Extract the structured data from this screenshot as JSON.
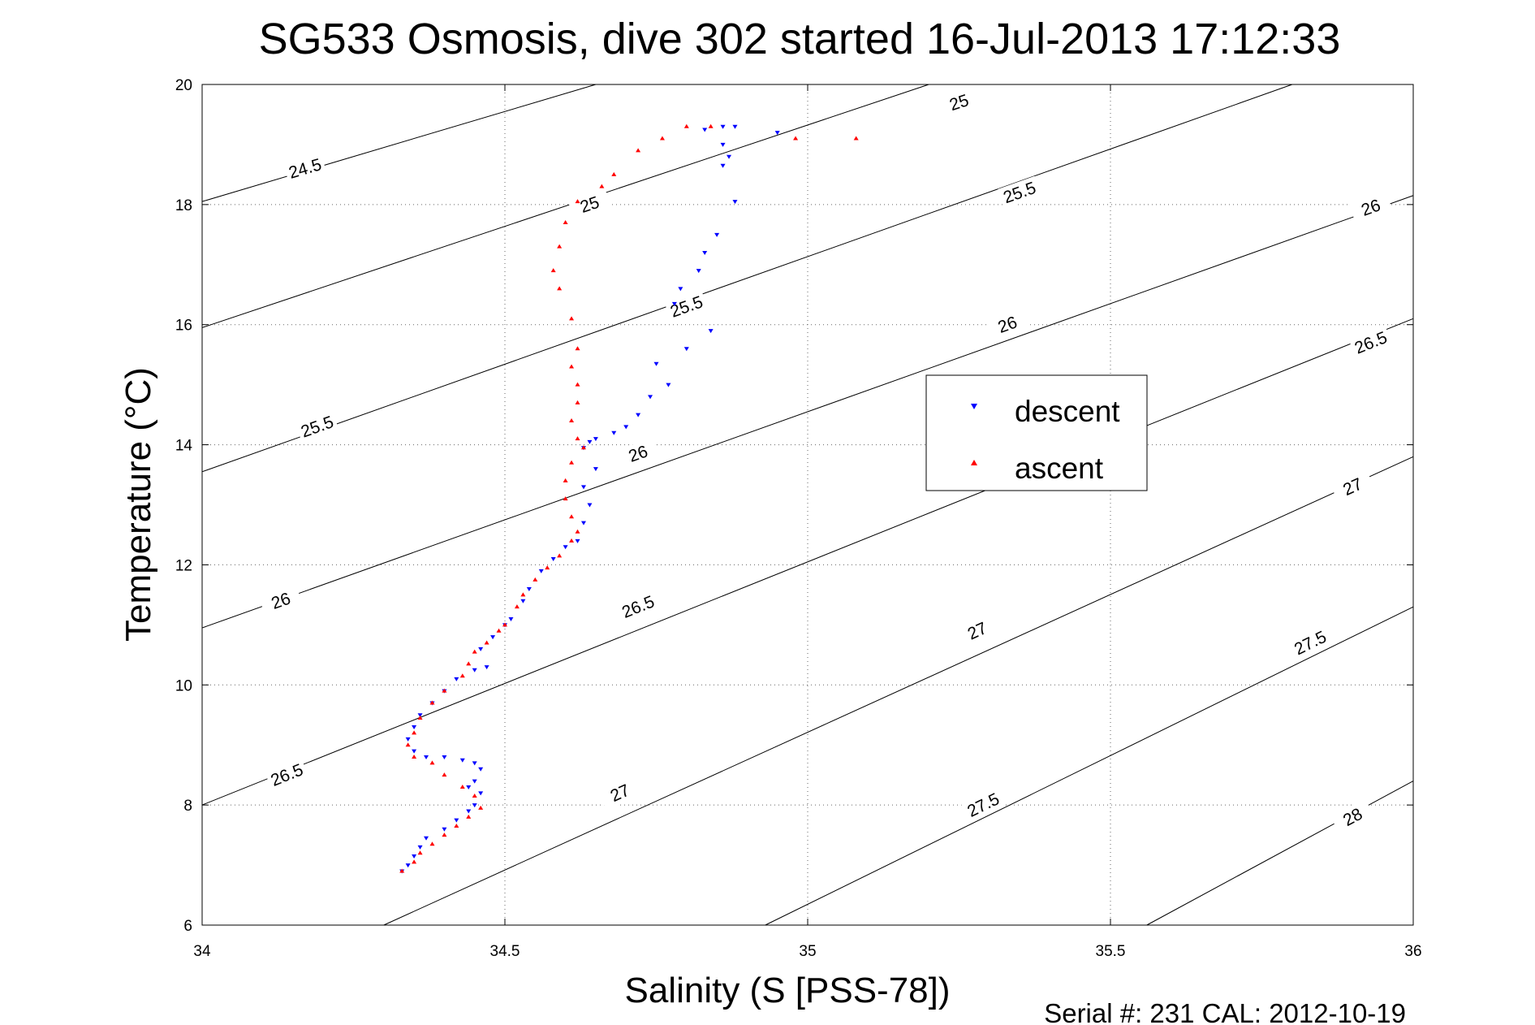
{
  "chart_data": {
    "type": "scatter",
    "title": "SG533 Osmosis, dive 302 started 16-Jul-2013 17:12:33",
    "xlabel": "Salinity (S [PSS-78])",
    "ylabel": "Temperature (°C)",
    "xlim": [
      34,
      36
    ],
    "ylim": [
      6,
      20
    ],
    "xticks": [
      "34",
      "34.5",
      "35",
      "35.5",
      "36"
    ],
    "yticks": [
      "6",
      "8",
      "10",
      "12",
      "14",
      "16",
      "18",
      "20"
    ],
    "grid": true,
    "legend_position": "right-center",
    "footer": "Serial #: 231  CAL: 2012-10-19",
    "contours": [
      {
        "level": "24.5",
        "s": [
          34.0,
          34.65
        ],
        "t": [
          18.05,
          20.0
        ],
        "labels": [
          [
            34.17,
            18.6
          ]
        ]
      },
      {
        "level": "25",
        "s": [
          34.0,
          35.2
        ],
        "t": [
          15.95,
          20.0
        ],
        "labels": [
          [
            34.64,
            18.0
          ],
          [
            35.25,
            19.7
          ]
        ]
      },
      {
        "level": "25.5",
        "s": [
          34.0,
          35.8
        ],
        "t": [
          13.55,
          20.0
        ],
        "labels": [
          [
            34.19,
            14.3
          ],
          [
            34.8,
            16.3
          ],
          [
            35.35,
            18.2
          ]
        ]
      },
      {
        "level": "26",
        "s": [
          34.0,
          36.0
        ],
        "t": [
          10.95,
          18.15
        ],
        "labels": [
          [
            34.13,
            11.4
          ],
          [
            34.72,
            13.85
          ],
          [
            35.33,
            16.0
          ],
          [
            35.93,
            17.95
          ]
        ]
      },
      {
        "level": "26.5",
        "s": [
          34.0,
          36.0
        ],
        "t": [
          8.0,
          16.1
        ],
        "labels": [
          [
            34.14,
            8.5
          ],
          [
            34.72,
            11.3
          ],
          [
            35.93,
            15.7
          ]
        ]
      },
      {
        "level": "27",
        "s": [
          34.3,
          36.0
        ],
        "t": [
          6.0,
          13.8
        ],
        "labels": [
          [
            34.69,
            8.2
          ],
          [
            35.28,
            10.9
          ],
          [
            35.9,
            13.3
          ]
        ]
      },
      {
        "level": "27.5",
        "s": [
          34.93,
          36.0
        ],
        "t": [
          6.0,
          11.3
        ],
        "labels": [
          [
            35.29,
            8.0
          ],
          [
            35.83,
            10.7
          ]
        ]
      },
      {
        "level": "28",
        "s": [
          35.56,
          36.0
        ],
        "t": [
          6.0,
          8.4
        ],
        "labels": [
          [
            35.9,
            7.8
          ]
        ]
      }
    ],
    "series": [
      {
        "name": "descent",
        "color": "#0000ff",
        "marker": "triangle-down",
        "points": [
          [
            34.88,
            19.3
          ],
          [
            34.86,
            19.3
          ],
          [
            34.83,
            19.25
          ],
          [
            34.95,
            19.2
          ],
          [
            34.86,
            19.0
          ],
          [
            34.87,
            18.8
          ],
          [
            34.86,
            18.65
          ],
          [
            34.88,
            18.05
          ],
          [
            34.85,
            17.5
          ],
          [
            34.83,
            17.2
          ],
          [
            34.82,
            16.9
          ],
          [
            34.79,
            16.6
          ],
          [
            34.78,
            16.35
          ],
          [
            34.84,
            15.9
          ],
          [
            34.8,
            15.6
          ],
          [
            34.75,
            15.35
          ],
          [
            34.77,
            15.0
          ],
          [
            34.74,
            14.8
          ],
          [
            34.72,
            14.5
          ],
          [
            34.7,
            14.3
          ],
          [
            34.68,
            14.2
          ],
          [
            34.65,
            14.1
          ],
          [
            34.64,
            14.05
          ],
          [
            34.63,
            13.95
          ],
          [
            34.65,
            13.6
          ],
          [
            34.63,
            13.3
          ],
          [
            34.64,
            13.0
          ],
          [
            34.63,
            12.7
          ],
          [
            34.62,
            12.4
          ],
          [
            34.6,
            12.3
          ],
          [
            34.58,
            12.1
          ],
          [
            34.56,
            11.9
          ],
          [
            34.54,
            11.6
          ],
          [
            34.53,
            11.4
          ],
          [
            34.51,
            11.1
          ],
          [
            34.5,
            11.0
          ],
          [
            34.48,
            10.8
          ],
          [
            34.46,
            10.6
          ],
          [
            34.47,
            10.3
          ],
          [
            34.45,
            10.25
          ],
          [
            34.42,
            10.1
          ],
          [
            34.4,
            9.9
          ],
          [
            34.38,
            9.7
          ],
          [
            34.36,
            9.5
          ],
          [
            34.35,
            9.3
          ],
          [
            34.34,
            9.1
          ],
          [
            34.35,
            8.9
          ],
          [
            34.37,
            8.8
          ],
          [
            34.4,
            8.8
          ],
          [
            34.43,
            8.75
          ],
          [
            34.45,
            8.7
          ],
          [
            34.46,
            8.6
          ],
          [
            34.45,
            8.4
          ],
          [
            34.44,
            8.3
          ],
          [
            34.46,
            8.2
          ],
          [
            34.45,
            8.0
          ],
          [
            34.44,
            7.9
          ],
          [
            34.42,
            7.75
          ],
          [
            34.4,
            7.6
          ],
          [
            34.37,
            7.45
          ],
          [
            34.36,
            7.3
          ],
          [
            34.35,
            7.15
          ],
          [
            34.34,
            7.0
          ],
          [
            34.33,
            6.9
          ]
        ]
      },
      {
        "name": "ascent",
        "color": "#ff0000",
        "marker": "triangle-up",
        "points": [
          [
            34.33,
            6.9
          ],
          [
            34.35,
            7.05
          ],
          [
            34.36,
            7.2
          ],
          [
            34.38,
            7.35
          ],
          [
            34.4,
            7.5
          ],
          [
            34.42,
            7.65
          ],
          [
            34.44,
            7.8
          ],
          [
            34.46,
            7.95
          ],
          [
            34.45,
            8.15
          ],
          [
            34.43,
            8.3
          ],
          [
            34.4,
            8.5
          ],
          [
            34.38,
            8.7
          ],
          [
            34.35,
            8.8
          ],
          [
            34.34,
            9.0
          ],
          [
            34.35,
            9.2
          ],
          [
            34.36,
            9.45
          ],
          [
            34.38,
            9.7
          ],
          [
            34.4,
            9.9
          ],
          [
            34.43,
            10.15
          ],
          [
            34.44,
            10.35
          ],
          [
            34.45,
            10.55
          ],
          [
            34.47,
            10.7
          ],
          [
            34.49,
            10.9
          ],
          [
            34.5,
            11.0
          ],
          [
            34.52,
            11.3
          ],
          [
            34.53,
            11.5
          ],
          [
            34.55,
            11.75
          ],
          [
            34.57,
            11.95
          ],
          [
            34.59,
            12.15
          ],
          [
            34.61,
            12.4
          ],
          [
            34.62,
            12.55
          ],
          [
            34.61,
            12.8
          ],
          [
            34.6,
            13.1
          ],
          [
            34.6,
            13.4
          ],
          [
            34.61,
            13.7
          ],
          [
            34.63,
            13.95
          ],
          [
            34.62,
            14.1
          ],
          [
            34.61,
            14.4
          ],
          [
            34.62,
            14.7
          ],
          [
            34.62,
            15.0
          ],
          [
            34.61,
            15.3
          ],
          [
            34.62,
            15.6
          ],
          [
            34.61,
            16.1
          ],
          [
            34.59,
            16.6
          ],
          [
            34.58,
            16.9
          ],
          [
            34.59,
            17.3
          ],
          [
            34.6,
            17.7
          ],
          [
            34.62,
            18.05
          ],
          [
            34.66,
            18.3
          ],
          [
            34.68,
            18.5
          ],
          [
            34.72,
            18.9
          ],
          [
            34.76,
            19.1
          ],
          [
            34.8,
            19.3
          ],
          [
            34.84,
            19.3
          ],
          [
            34.98,
            19.1
          ],
          [
            35.08,
            19.1
          ]
        ]
      }
    ]
  }
}
